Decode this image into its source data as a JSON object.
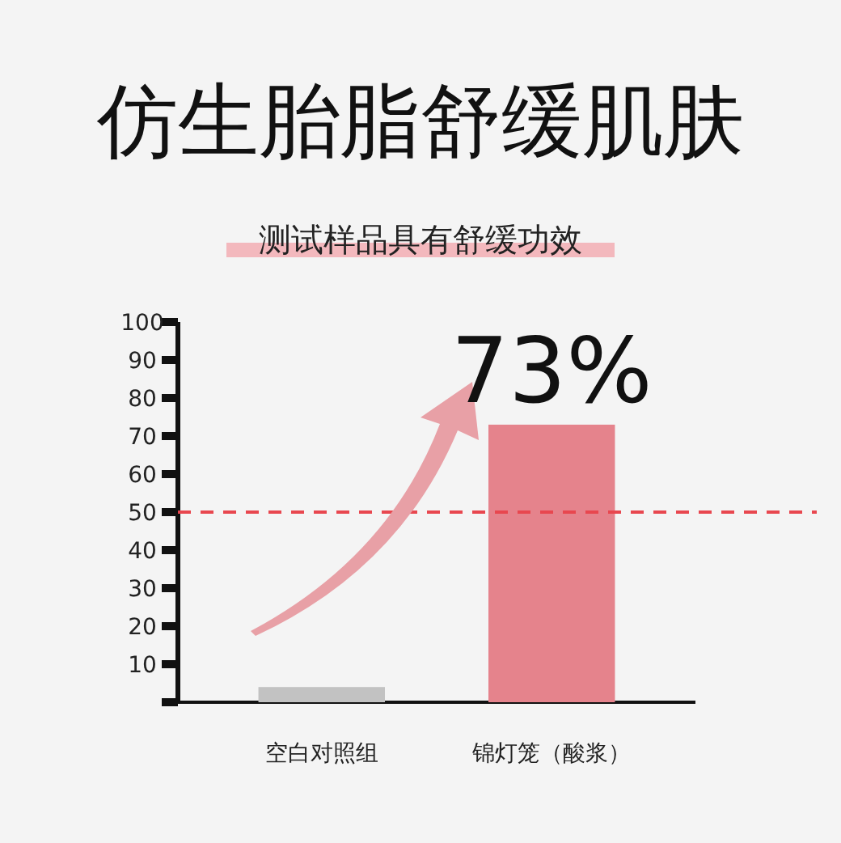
{
  "chart_data": {
    "type": "bar",
    "title": "仿生胎脂舒缓肌肤",
    "subtitle": "测试样品具有舒缓功效",
    "categories": [
      "空白对照组",
      "锦灯笼（酸浆）"
    ],
    "values": [
      4,
      73
    ],
    "colors": [
      "#c2c2c2",
      "#e5838c"
    ],
    "value_labels": [
      null,
      "73%"
    ],
    "ylim": [
      0,
      100
    ],
    "yticks": [
      {
        "value": 0,
        "label": null
      },
      10,
      20,
      30,
      40,
      50,
      60,
      70,
      80,
      90,
      100
    ],
    "ref_lines": [
      {
        "axis": "y",
        "value": 50,
        "color": "#e8474f",
        "line_style": "dashed"
      }
    ],
    "grid": false
  }
}
